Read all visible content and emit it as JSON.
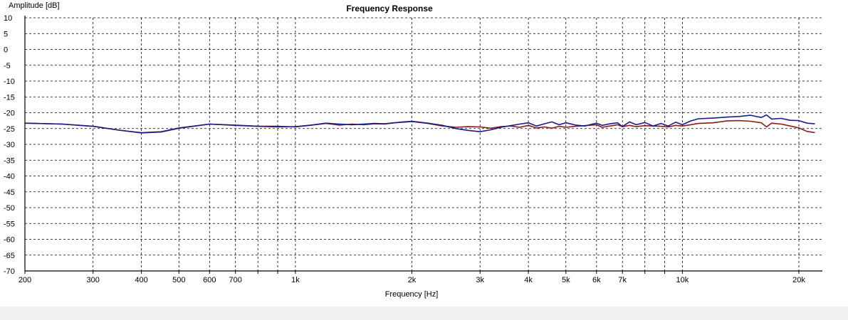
{
  "chart_data": {
    "type": "line",
    "title": "Frequency Response",
    "xlabel": "Frequency [Hz]",
    "ylabel": "Amplitude [dB]",
    "x_scale": "log",
    "xlim": [
      200,
      23000
    ],
    "ylim": [
      -70,
      10
    ],
    "grid": true,
    "grid_style": "dashed",
    "x_ticks": [
      {
        "value": 200,
        "label": "200"
      },
      {
        "value": 300,
        "label": "300"
      },
      {
        "value": 400,
        "label": "400"
      },
      {
        "value": 500,
        "label": "500"
      },
      {
        "value": 600,
        "label": "600"
      },
      {
        "value": 700,
        "label": "700"
      },
      {
        "value": 800,
        "label": ""
      },
      {
        "value": 900,
        "label": ""
      },
      {
        "value": 1000,
        "label": "1k"
      },
      {
        "value": 2000,
        "label": "2k"
      },
      {
        "value": 3000,
        "label": "3k"
      },
      {
        "value": 4000,
        "label": "4k"
      },
      {
        "value": 5000,
        "label": "5k"
      },
      {
        "value": 6000,
        "label": "6k"
      },
      {
        "value": 7000,
        "label": "7k"
      },
      {
        "value": 8000,
        "label": ""
      },
      {
        "value": 9000,
        "label": ""
      },
      {
        "value": 10000,
        "label": "10k"
      },
      {
        "value": 20000,
        "label": "20k"
      }
    ],
    "y_ticks": [
      10,
      5,
      0,
      -5,
      -10,
      -15,
      -20,
      -25,
      -30,
      -35,
      -40,
      -45,
      -50,
      -55,
      -60,
      -65,
      -70
    ],
    "series": [
      {
        "color": "#8b1a1a",
        "x": [
          200,
          250,
          300,
          350,
          400,
          450,
          500,
          600,
          700,
          800,
          900,
          1000,
          1100,
          1200,
          1300,
          1400,
          1500,
          1600,
          1700,
          1800,
          1900,
          2000,
          2200,
          2400,
          2600,
          2800,
          3000,
          3200,
          3400,
          3600,
          3800,
          4000,
          4200,
          4400,
          4600,
          4800,
          5000,
          5300,
          5600,
          6000,
          6200,
          6500,
          6800,
          7000,
          7300,
          7600,
          8000,
          8400,
          8800,
          9200,
          9600,
          10000,
          10500,
          11000,
          12000,
          13000,
          14000,
          15000,
          16000,
          16500,
          17000,
          18000,
          19000,
          20000,
          21000,
          22000
        ],
        "values": [
          -23.3,
          -23.6,
          -24.3,
          -25.5,
          -26.3,
          -26.0,
          -24.8,
          -23.6,
          -23.9,
          -24.3,
          -24.3,
          -24.5,
          -23.9,
          -23.4,
          -23.9,
          -23.6,
          -23.8,
          -23.5,
          -23.6,
          -23.2,
          -23.0,
          -22.8,
          -23.4,
          -24.2,
          -24.6,
          -24.4,
          -24.5,
          -24.9,
          -24.4,
          -24.2,
          -24.6,
          -24.0,
          -24.8,
          -24.5,
          -24.9,
          -24.3,
          -24.6,
          -24.3,
          -24.1,
          -23.8,
          -24.6,
          -24.2,
          -23.8,
          -24.4,
          -24.0,
          -24.4,
          -24.1,
          -24.2,
          -24.3,
          -24.5,
          -24.0,
          -24.2,
          -23.8,
          -23.4,
          -23.2,
          -22.6,
          -22.5,
          -22.7,
          -23.2,
          -24.5,
          -23.3,
          -23.6,
          -24.2,
          -24.8,
          -25.9,
          -26.3
        ]
      },
      {
        "color": "#1a1a8c",
        "x": [
          200,
          250,
          300,
          350,
          400,
          450,
          500,
          600,
          700,
          800,
          900,
          1000,
          1100,
          1200,
          1300,
          1400,
          1500,
          1600,
          1700,
          1800,
          1900,
          2000,
          2200,
          2400,
          2600,
          2800,
          3000,
          3200,
          3400,
          3600,
          3800,
          4000,
          4200,
          4400,
          4600,
          4800,
          5000,
          5300,
          5600,
          6000,
          6200,
          6500,
          6800,
          7000,
          7300,
          7600,
          8000,
          8400,
          8800,
          9200,
          9600,
          10000,
          10500,
          11000,
          12000,
          13000,
          14000,
          15000,
          16000,
          16500,
          17000,
          18000,
          19000,
          20000,
          21000,
          22000
        ],
        "values": [
          -23.3,
          -23.6,
          -24.3,
          -25.5,
          -26.4,
          -26.1,
          -24.9,
          -23.6,
          -24.0,
          -24.3,
          -24.5,
          -24.4,
          -23.9,
          -23.3,
          -23.6,
          -23.8,
          -23.6,
          -23.4,
          -23.5,
          -23.2,
          -22.9,
          -22.7,
          -23.3,
          -24.0,
          -25.0,
          -25.6,
          -26.0,
          -25.4,
          -24.6,
          -24.1,
          -23.6,
          -23.2,
          -24.2,
          -23.5,
          -22.9,
          -23.8,
          -23.2,
          -23.9,
          -24.2,
          -23.3,
          -24.0,
          -23.5,
          -23.2,
          -24.4,
          -22.9,
          -23.8,
          -23.1,
          -24.2,
          -23.4,
          -24.2,
          -23.0,
          -23.8,
          -22.6,
          -21.9,
          -21.7,
          -21.4,
          -21.2,
          -20.8,
          -21.5,
          -20.7,
          -22.0,
          -21.8,
          -22.4,
          -22.5,
          -23.3,
          -23.5
        ]
      }
    ]
  }
}
